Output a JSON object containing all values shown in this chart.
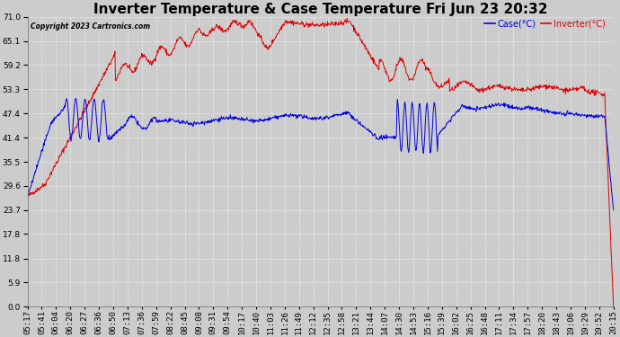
{
  "title": "Inverter Temperature & Case Temperature Fri Jun 23 20:32",
  "copyright": "Copyright 2023 Cartronics.com",
  "legend_case": "Case(°C)",
  "legend_inverter": "Inverter(°C)",
  "ylabel_ticks": [
    0.0,
    5.9,
    11.8,
    17.8,
    23.7,
    29.6,
    35.5,
    41.4,
    47.4,
    53.3,
    59.2,
    65.1,
    71.0
  ],
  "x_labels": [
    "05:17",
    "05:41",
    "06:04",
    "06:20",
    "06:27",
    "06:36",
    "06:50",
    "07:13",
    "07:36",
    "07:59",
    "08:22",
    "08:45",
    "09:08",
    "09:31",
    "09:54",
    "10:17",
    "10:40",
    "11:03",
    "11:26",
    "11:49",
    "12:12",
    "12:35",
    "12:58",
    "13:21",
    "13:44",
    "14:07",
    "14:30",
    "14:53",
    "15:16",
    "15:39",
    "16:02",
    "16:25",
    "16:48",
    "17:11",
    "17:34",
    "17:57",
    "18:20",
    "18:43",
    "19:06",
    "19:29",
    "19:52",
    "20:15"
  ],
  "bg_color": "#cccccc",
  "plot_bg_color": "#cccccc",
  "grid_color": "#ffffff",
  "case_color": "#0000dd",
  "inverter_color": "#dd0000",
  "title_fontsize": 11,
  "tick_fontsize": 6.5,
  "ylim": [
    0.0,
    71.0
  ]
}
